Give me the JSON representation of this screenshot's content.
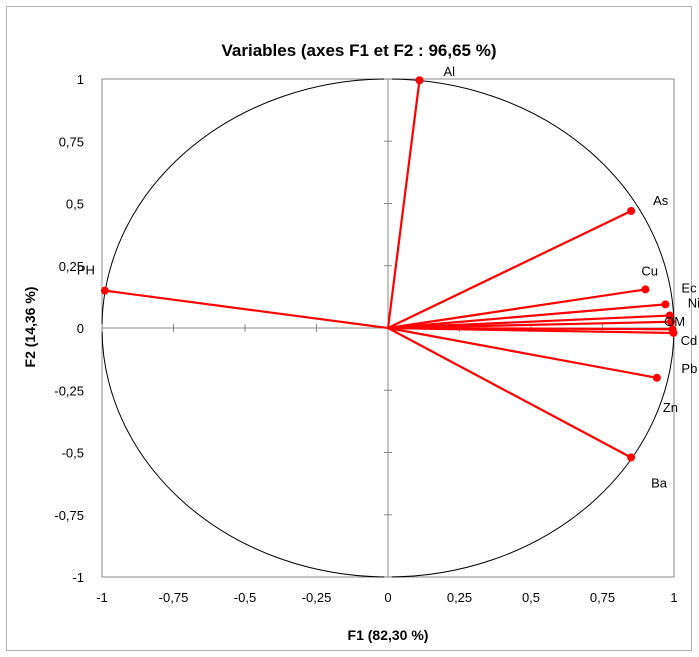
{
  "chart_data": {
    "type": "scatter",
    "subtype": "correlation-circle",
    "title": "Variables (axes F1 et F2 : 96,65 %)",
    "xlabel": "F1 (82,30 %)",
    "ylabel": "F2 (14,36 %)",
    "xlim": [
      -1,
      1
    ],
    "ylim": [
      -1,
      1
    ],
    "x_ticks": [
      "-1",
      "-0,75",
      "-0,5",
      "-0,25",
      "0",
      "0,25",
      "0,5",
      "0,75",
      "1"
    ],
    "y_ticks": [
      "1",
      "0,75",
      "0,5",
      "0,25",
      "0",
      "-0,25",
      "-0,5",
      "-0,75",
      "-1"
    ],
    "unit_circle": true,
    "vector_color": "#ff0000",
    "points": [
      {
        "label": "Al",
        "x": 0.11,
        "y": 0.995
      },
      {
        "label": "As",
        "x": 0.85,
        "y": 0.47
      },
      {
        "label": "PH",
        "x": -0.99,
        "y": 0.15
      },
      {
        "label": "Cu",
        "x": 0.9,
        "y": 0.155
      },
      {
        "label": "Ec",
        "x": 0.97,
        "y": 0.095
      },
      {
        "label": "Ni",
        "x": 0.985,
        "y": 0.05
      },
      {
        "label": "OM",
        "x": 0.99,
        "y": 0.025
      },
      {
        "label": "Cd",
        "x": 0.995,
        "y": -0.005
      },
      {
        "label": "Pb",
        "x": 0.998,
        "y": -0.02
      },
      {
        "label": "Zn",
        "x": 0.94,
        "y": -0.2
      },
      {
        "label": "Ba",
        "x": 0.85,
        "y": -0.52
      }
    ]
  }
}
